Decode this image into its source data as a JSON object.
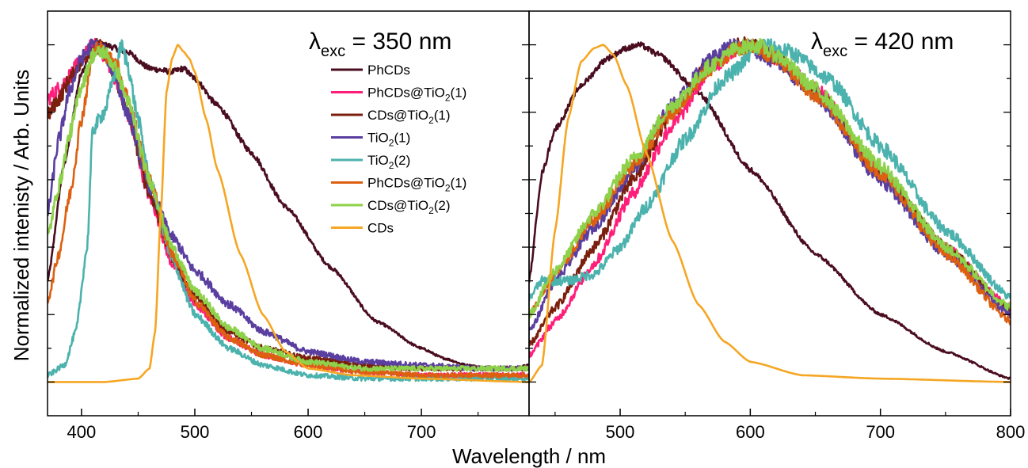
{
  "figure": {
    "xlabel": "Wavelength / nm",
    "ylabel": "Normalized intenisty / Arb. Units"
  },
  "chart_data": [
    {
      "type": "line",
      "panel": "left",
      "annotation": {
        "lambda": "λ",
        "sub": "exc",
        "text": " = 350 nm"
      },
      "xlim": [
        370,
        795
      ],
      "ylim": [
        -0.1,
        1.1
      ],
      "xticks": [
        400,
        500,
        600,
        700
      ],
      "xtick_labels": [
        "400",
        "500",
        "600",
        "700"
      ],
      "legend_position": "top-center",
      "series": [
        {
          "name": "PhCDs",
          "name_main": "PhCDs",
          "name_sub": "",
          "name_tail": "",
          "color": "#4a0d1f",
          "x": [
            370,
            385,
            400,
            410,
            420,
            440,
            460,
            480,
            490,
            500,
            520,
            550,
            580,
            620,
            660,
            700,
            720,
            740,
            760,
            780,
            795
          ],
          "y": [
            0.3,
            0.65,
            0.92,
            0.99,
            1.0,
            0.98,
            0.93,
            0.92,
            0.93,
            0.9,
            0.82,
            0.68,
            0.52,
            0.34,
            0.18,
            0.1,
            0.07,
            0.05,
            0.04,
            0.04,
            0.05
          ]
        },
        {
          "name": "PhCDs@TiO2(1)",
          "name_main": "PhCDs@TiO",
          "name_sub": "2",
          "name_tail": "(1)",
          "color": "#ff1f7a",
          "x": [
            370,
            380,
            390,
            400,
            410,
            415,
            420,
            430,
            440,
            460,
            480,
            500,
            530,
            560,
            600,
            650,
            700,
            750,
            795
          ],
          "y": [
            0.84,
            0.87,
            0.91,
            0.96,
            1.0,
            0.99,
            0.97,
            0.9,
            0.8,
            0.55,
            0.35,
            0.23,
            0.13,
            0.08,
            0.05,
            0.03,
            0.02,
            0.02,
            0.02
          ]
        },
        {
          "name": "CDs@TiO2(1)",
          "name_main": "CDs@TiO",
          "name_sub": "2",
          "name_tail": "(1)",
          "color": "#7a1f0e",
          "x": [
            370,
            380,
            390,
            400,
            410,
            415,
            420,
            430,
            440,
            460,
            480,
            500,
            530,
            560,
            600,
            650,
            700,
            750,
            795
          ],
          "y": [
            0.79,
            0.84,
            0.9,
            0.95,
            0.99,
            1.0,
            0.98,
            0.9,
            0.8,
            0.56,
            0.37,
            0.25,
            0.15,
            0.1,
            0.07,
            0.05,
            0.04,
            0.04,
            0.04
          ]
        },
        {
          "name": "TiO2(1)",
          "name_main": "TiO",
          "name_sub": "2",
          "name_tail": "(1)",
          "color": "#5a3fa0",
          "x": [
            370,
            380,
            390,
            400,
            410,
            420,
            430,
            440,
            460,
            480,
            500,
            530,
            560,
            600,
            650,
            700,
            750,
            795
          ],
          "y": [
            0.5,
            0.72,
            0.87,
            0.96,
            1.0,
            0.98,
            0.9,
            0.8,
            0.58,
            0.43,
            0.33,
            0.23,
            0.15,
            0.09,
            0.06,
            0.05,
            0.04,
            0.04
          ]
        },
        {
          "name": "TiO2(2)",
          "name_main": "TiO",
          "name_sub": "2",
          "name_tail": "(2)",
          "color": "#4cb2ad",
          "x": [
            370,
            385,
            395,
            405,
            410,
            420,
            430,
            435,
            440,
            450,
            460,
            480,
            500,
            530,
            560,
            600,
            650,
            700,
            750,
            795
          ],
          "y": [
            0.02,
            0.05,
            0.15,
            0.4,
            0.75,
            0.8,
            0.92,
            1.0,
            0.95,
            0.78,
            0.6,
            0.36,
            0.2,
            0.1,
            0.05,
            0.02,
            0.01,
            0.01,
            0.01,
            0.01
          ]
        },
        {
          "name": "PhCDs@TiO2(1)",
          "name_main": "PhCDs@TiO",
          "name_sub": "2",
          "name_tail": "(1)",
          "color": "#dd6010",
          "x": [
            370,
            380,
            390,
            400,
            410,
            415,
            420,
            430,
            440,
            460,
            480,
            500,
            530,
            560,
            600,
            650,
            700,
            750,
            795
          ],
          "y": [
            0.24,
            0.38,
            0.56,
            0.78,
            0.97,
            1.0,
            0.97,
            0.95,
            0.85,
            0.6,
            0.38,
            0.24,
            0.13,
            0.08,
            0.05,
            0.03,
            0.02,
            0.02,
            0.02
          ]
        },
        {
          "name": "CDs@TiO2(2)",
          "name_main": "CDs@TiO",
          "name_sub": "2",
          "name_tail": "(2)",
          "color": "#8ed14a",
          "x": [
            370,
            380,
            390,
            400,
            410,
            420,
            430,
            440,
            460,
            480,
            500,
            530,
            560,
            600,
            650,
            700,
            750,
            795
          ],
          "y": [
            0.43,
            0.58,
            0.74,
            0.88,
            0.97,
            0.98,
            0.93,
            0.84,
            0.6,
            0.4,
            0.27,
            0.16,
            0.1,
            0.06,
            0.04,
            0.04,
            0.04,
            0.04
          ]
        },
        {
          "name": "CDs",
          "name_main": "CDs",
          "name_sub": "",
          "name_tail": "",
          "color": "#f5a623",
          "x": [
            370,
            420,
            450,
            460,
            465,
            470,
            475,
            480,
            485,
            490,
            495,
            500,
            510,
            520,
            540,
            560,
            580,
            600,
            640,
            700,
            795
          ],
          "y": [
            0.0,
            0.0,
            0.01,
            0.04,
            0.15,
            0.5,
            0.86,
            0.96,
            1.0,
            0.98,
            0.96,
            0.92,
            0.78,
            0.63,
            0.38,
            0.2,
            0.09,
            0.04,
            0.02,
            0.01,
            0.0
          ]
        }
      ]
    },
    {
      "type": "line",
      "panel": "right",
      "annotation": {
        "lambda": "λ",
        "sub": "exc",
        "text": " = 420 nm"
      },
      "xlim": [
        430,
        800
      ],
      "ylim": [
        -0.1,
        1.1
      ],
      "xticks": [
        500,
        600,
        700,
        800
      ],
      "xtick_labels": [
        "500",
        "600",
        "700",
        "800"
      ],
      "series": [
        {
          "name": "PhCDs",
          "color": "#4a0d1f",
          "x": [
            430,
            440,
            450,
            470,
            490,
            505,
            515,
            530,
            560,
            600,
            650,
            700,
            750,
            800
          ],
          "y": [
            0.3,
            0.62,
            0.75,
            0.88,
            0.96,
            0.99,
            1.0,
            0.97,
            0.86,
            0.63,
            0.38,
            0.2,
            0.09,
            0.01
          ]
        },
        {
          "name": "PhCDs@TiO2(1)",
          "color": "#ff1f7a",
          "x": [
            430,
            450,
            480,
            510,
            540,
            570,
            590,
            600,
            620,
            650,
            700,
            750,
            800
          ],
          "y": [
            0.08,
            0.18,
            0.35,
            0.56,
            0.76,
            0.93,
            0.99,
            1.0,
            0.96,
            0.87,
            0.62,
            0.4,
            0.22
          ]
        },
        {
          "name": "CDs@TiO2(1)",
          "color": "#7a1f0e",
          "x": [
            430,
            450,
            480,
            510,
            540,
            570,
            590,
            600,
            620,
            650,
            700,
            750,
            800
          ],
          "y": [
            0.11,
            0.22,
            0.4,
            0.6,
            0.8,
            0.95,
            1.0,
            1.0,
            0.96,
            0.86,
            0.62,
            0.4,
            0.21
          ]
        },
        {
          "name": "TiO2(1)",
          "color": "#5a3fa0",
          "x": [
            430,
            450,
            480,
            510,
            540,
            570,
            585,
            600,
            620,
            650,
            700,
            750,
            800
          ],
          "y": [
            0.15,
            0.3,
            0.46,
            0.63,
            0.82,
            0.96,
            1.0,
            0.99,
            0.95,
            0.85,
            0.6,
            0.38,
            0.2
          ]
        },
        {
          "name": "TiO2(2)",
          "color": "#4cb2ad",
          "x": [
            430,
            440,
            460,
            480,
            500,
            520,
            550,
            580,
            610,
            630,
            660,
            700,
            750,
            800
          ],
          "y": [
            0.25,
            0.3,
            0.3,
            0.32,
            0.4,
            0.52,
            0.72,
            0.9,
            1.0,
            0.98,
            0.9,
            0.7,
            0.45,
            0.25
          ]
        },
        {
          "name": "PhCDs@TiO2(1)",
          "color": "#dd6010",
          "x": [
            430,
            450,
            480,
            510,
            540,
            570,
            590,
            600,
            620,
            650,
            700,
            750,
            800
          ],
          "y": [
            0.2,
            0.32,
            0.48,
            0.64,
            0.8,
            0.93,
            0.99,
            1.0,
            0.96,
            0.85,
            0.62,
            0.38,
            0.18
          ]
        },
        {
          "name": "CDs@TiO2(2)",
          "color": "#8ed14a",
          "x": [
            430,
            450,
            480,
            510,
            540,
            570,
            590,
            605,
            620,
            650,
            700,
            750,
            800
          ],
          "y": [
            0.2,
            0.33,
            0.5,
            0.66,
            0.82,
            0.94,
            0.99,
            1.0,
            0.97,
            0.87,
            0.64,
            0.4,
            0.22
          ]
        },
        {
          "name": "CDs",
          "color": "#f5a623",
          "x": [
            430,
            440,
            450,
            460,
            470,
            480,
            487,
            495,
            505,
            520,
            540,
            560,
            580,
            600,
            640,
            700,
            800
          ],
          "y": [
            0.0,
            0.05,
            0.45,
            0.78,
            0.95,
            0.99,
            1.0,
            0.97,
            0.88,
            0.68,
            0.42,
            0.23,
            0.12,
            0.06,
            0.02,
            0.01,
            0.0
          ]
        }
      ]
    }
  ]
}
